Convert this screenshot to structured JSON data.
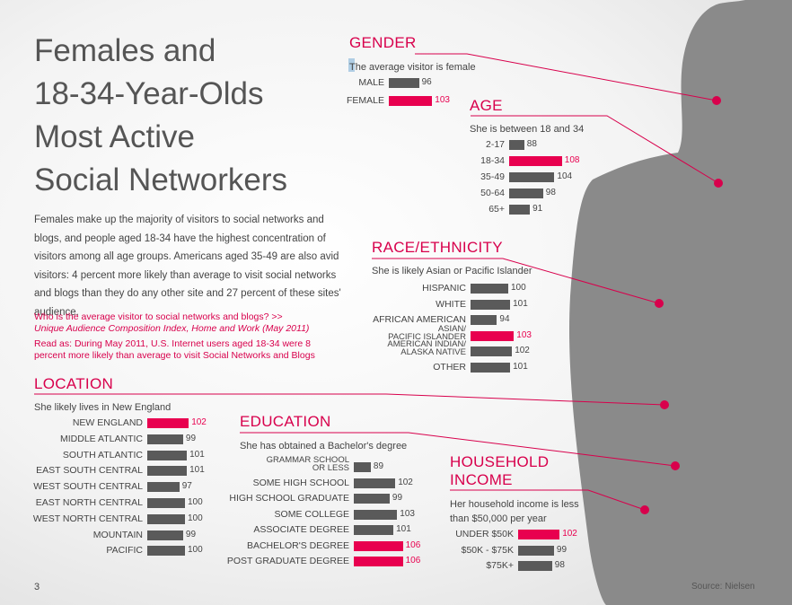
{
  "title": [
    "Females and",
    "18-34-Year-Olds",
    "Most Active",
    "Social Networkers"
  ],
  "intro": "Females make up the majority of visitors to social networks and blogs, and people aged 18-34 have the highest concentration of visitors among all age groups. Americans aged 35-49 are also avid visitors: 4 percent more likely than average to visit social networks and blogs than they do any other site and 27 percent of these sites' audience.",
  "question": "Who is the average visitor to social networks and blogs? >>",
  "source_note": "Unique Audience Composition Index, Home and Work (May 2011)",
  "read_as": "Read as: During May 2011, U.S. Internet users aged 18-34 were 8 percent more likely than average to visit Social Networks and Blogs",
  "page_number": "3",
  "source": "Source: Nielsen",
  "colors": {
    "highlight": "#e8004f",
    "bar": "#5a5a5a",
    "accent": "#d8004c",
    "silhouette": "#8c8c8c"
  },
  "chart_data": [
    {
      "type": "bar",
      "title": "GENDER",
      "subtitle": "The average visitor is female",
      "categories": [
        "MALE",
        "FEMALE"
      ],
      "values": [
        96,
        103
      ],
      "highlight": [
        false,
        true
      ]
    },
    {
      "type": "bar",
      "title": "AGE",
      "subtitle": "She is between 18 and 34",
      "categories": [
        "2-17",
        "18-34",
        "35-49",
        "50-64",
        "65+"
      ],
      "values": [
        88,
        108,
        104,
        98,
        91
      ],
      "highlight": [
        false,
        true,
        false,
        false,
        false
      ]
    },
    {
      "type": "bar",
      "title": "RACE/ETHNICITY",
      "subtitle": "She is likely Asian or Pacific Islander",
      "categories": [
        "HISPANIC",
        "WHITE",
        "AFRICAN AMERICAN",
        "ASIAN/\nPACIFIC ISLANDER",
        "AMERICAN INDIAN/\nALASKA NATIVE",
        "OTHER"
      ],
      "values": [
        100,
        101,
        94,
        103,
        102,
        101
      ],
      "highlight": [
        false,
        false,
        false,
        true,
        false,
        false
      ]
    },
    {
      "type": "bar",
      "title": "LOCATION",
      "subtitle": "She likely lives in New England",
      "categories": [
        "NEW ENGLAND",
        "MIDDLE ATLANTIC",
        "SOUTH ATLANTIC",
        "EAST SOUTH CENTRAL",
        "WEST SOUTH CENTRAL",
        "EAST NORTH CENTRAL",
        "WEST NORTH CENTRAL",
        "MOUNTAIN",
        "PACIFIC"
      ],
      "values": [
        102,
        99,
        101,
        101,
        97,
        100,
        100,
        99,
        100
      ],
      "highlight": [
        true,
        false,
        false,
        false,
        false,
        false,
        false,
        false,
        false
      ]
    },
    {
      "type": "bar",
      "title": "EDUCATION",
      "subtitle": "She has obtained a Bachelor's degree",
      "categories": [
        "GRAMMAR SCHOOL\nOR LESS",
        "SOME HIGH SCHOOL",
        "HIGH SCHOOL GRADUATE",
        "SOME COLLEGE",
        "ASSOCIATE DEGREE",
        "BACHELOR'S DEGREE",
        "POST GRADUATE DEGREE"
      ],
      "values": [
        89,
        102,
        99,
        103,
        101,
        106,
        106
      ],
      "highlight": [
        false,
        false,
        false,
        false,
        false,
        true,
        true
      ]
    },
    {
      "type": "bar",
      "title": "HOUSEHOLD\nINCOME",
      "subtitle": "Her household income is less\nthan $50,000 per year",
      "categories": [
        "UNDER $50K",
        "$50K - $75K",
        "$75K+"
      ],
      "values": [
        102,
        99,
        98
      ],
      "highlight": [
        true,
        false,
        false
      ]
    }
  ]
}
